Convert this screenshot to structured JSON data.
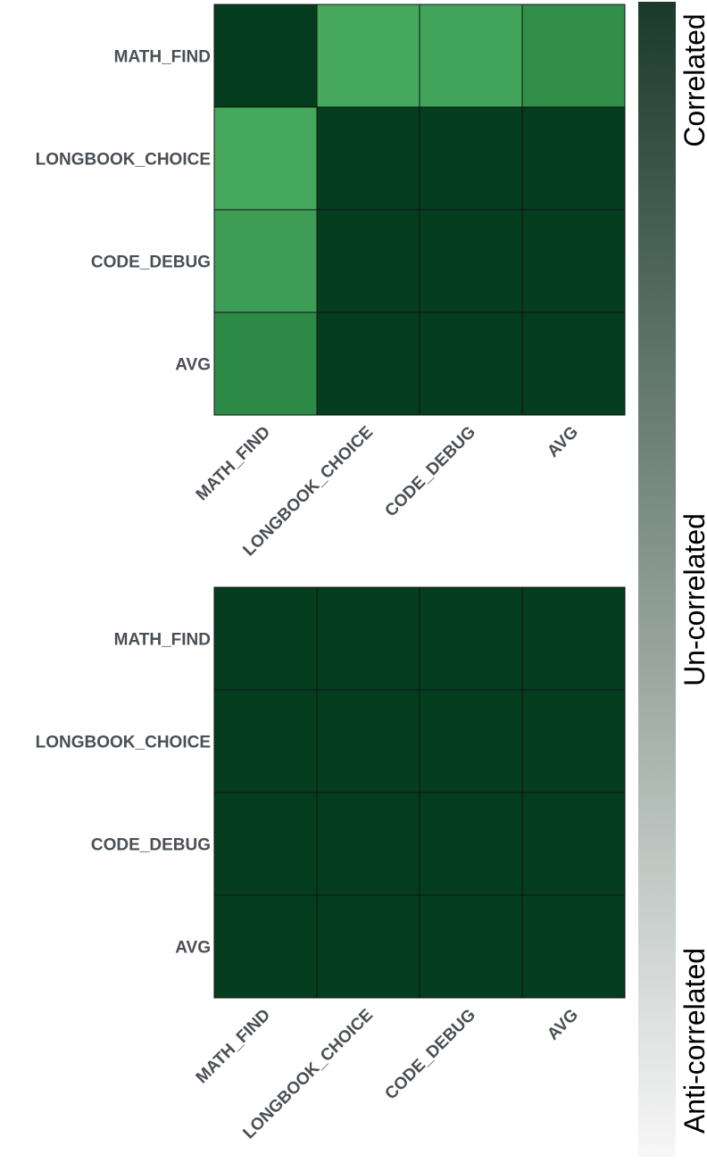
{
  "chart_data": [
    {
      "type": "heatmap",
      "rows": [
        "MATH_FIND",
        "LONGBOOK_CHOICE",
        "CODE_DEBUG",
        "AVG"
      ],
      "columns": [
        "MATH_FIND",
        "LONGBOOK_CHOICE",
        "CODE_DEBUG",
        "AVG"
      ],
      "values": [
        [
          1.0,
          0.35,
          0.38,
          0.52
        ],
        [
          0.35,
          1.0,
          0.92,
          0.95
        ],
        [
          0.42,
          0.92,
          0.98,
          0.95
        ],
        [
          0.55,
          0.96,
          0.95,
          0.97
        ]
      ],
      "range": [
        -1,
        1
      ]
    },
    {
      "type": "heatmap",
      "rows": [
        "MATH_FIND",
        "LONGBOOK_CHOICE",
        "CODE_DEBUG",
        "AVG"
      ],
      "columns": [
        "MATH_FIND",
        "LONGBOOK_CHOICE",
        "CODE_DEBUG",
        "AVG"
      ],
      "values": [
        [
          0.97,
          0.91,
          0.91,
          0.95
        ],
        [
          0.91,
          1.0,
          0.88,
          0.92
        ],
        [
          0.92,
          0.88,
          0.98,
          0.95
        ],
        [
          0.96,
          0.93,
          0.95,
          0.96
        ]
      ],
      "range": [
        -1,
        1
      ]
    }
  ],
  "colorbar": {
    "labels": [
      "Correlated",
      "Un-correlated",
      "Anti-correlated"
    ],
    "top_color": "#1b3a2b",
    "bottom_color": "#f7f7f7"
  },
  "colors": {
    "scale_low": "#4caf63",
    "scale_mid": "#2e8b47",
    "scale_high": "#053d1f",
    "label_text": "#4a4f55",
    "grid_line": "#111111"
  }
}
